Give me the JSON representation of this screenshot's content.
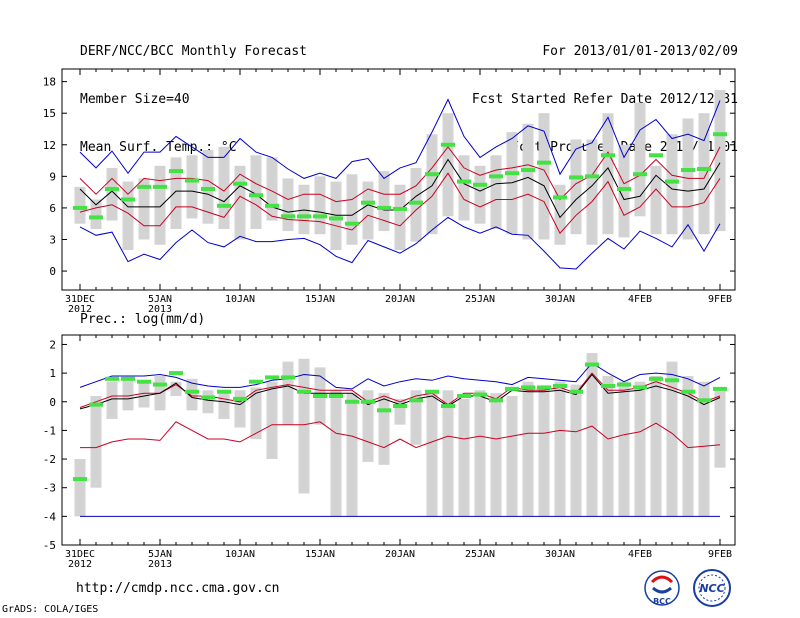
{
  "header": {
    "title": "DERF/NCC/BCC Monthly Forecast",
    "member_size": "Member Size=40",
    "variable": "Mean Surf. Temp.: °C",
    "period": "For 2013/01/01-2013/02/09",
    "start_date": "Fcst Started Refer Date 2012/12/31",
    "produced_date": "Fcst Produced Date 2013/01/01"
  },
  "footer": {
    "url": "http://cmdp.ncc.cma.gov.cn",
    "grads": "GrADS: COLA/IGES",
    "logo_left": "BCC",
    "logo_right": "NCC"
  },
  "colors": {
    "box": "#d3d3d3",
    "green": "#44e244",
    "blue": "#0000cc",
    "red": "#cc0022",
    "black": "#000000"
  },
  "chart_data": [
    {
      "type": "box",
      "name": "temperature",
      "title": "Mean Surf. Temp.: °C",
      "ylim": [
        -1.8,
        19.2
      ],
      "yticks": [
        0,
        3,
        6,
        9,
        12,
        15,
        18
      ],
      "xticks": [
        {
          "day": 0,
          "line1": "31DEC",
          "line2": "2012"
        },
        {
          "day": 5,
          "line1": "5JAN",
          "line2": "2013"
        },
        {
          "day": 10,
          "line1": "10JAN",
          "line2": ""
        },
        {
          "day": 15,
          "line1": "15JAN",
          "line2": ""
        },
        {
          "day": 20,
          "line1": "20JAN",
          "line2": ""
        },
        {
          "day": 25,
          "line1": "25JAN",
          "line2": ""
        },
        {
          "day": 30,
          "line1": "30JAN",
          "line2": ""
        },
        {
          "day": 35,
          "line1": "4FEB",
          "line2": ""
        },
        {
          "day": 40,
          "line1": "9FEB",
          "line2": ""
        }
      ],
      "box_low": [
        4.5,
        4,
        4.8,
        2,
        3,
        2.5,
        4,
        5,
        4.5,
        4,
        3,
        4,
        4.8,
        3.8,
        3.5,
        3.5,
        2,
        2.5,
        3,
        3.8,
        2,
        2.8,
        3.5,
        5.2,
        4.8,
        4.5,
        4,
        3.5,
        3,
        3,
        2.5,
        3.5,
        2.5,
        3.5,
        3.2,
        5.2,
        3.5,
        3.5,
        3,
        3.5,
        3.8
      ],
      "box_high": [
        8,
        6.8,
        9.8,
        8.5,
        8.8,
        10,
        10.8,
        11,
        11.5,
        11.8,
        10,
        11,
        10.8,
        8.8,
        8.2,
        9,
        8.5,
        9.2,
        8.5,
        9.5,
        8.2,
        9.8,
        13,
        15,
        11,
        10,
        11,
        13.2,
        14,
        15,
        8.2,
        12.5,
        12.5,
        15,
        12,
        16,
        10,
        13,
        14.5,
        15,
        17.2
      ],
      "median": [
        6,
        5.1,
        7.8,
        6.8,
        8,
        8,
        9.5,
        8.6,
        7.8,
        6.2,
        8.3,
        7.2,
        6.2,
        5.2,
        5.2,
        5.2,
        5,
        4.5,
        6.5,
        6,
        5.9,
        6.5,
        9.2,
        12,
        8.5,
        8.2,
        9,
        9.3,
        9.6,
        10.3,
        7,
        8.9,
        9,
        11,
        7.8,
        9.2,
        11,
        8.5,
        9.6,
        9.7,
        13
      ],
      "max": [
        11.3,
        9.8,
        11.4,
        9.3,
        11.3,
        11.3,
        12.8,
        11.8,
        10.8,
        10.8,
        12.6,
        11.3,
        10.8,
        9.7,
        8.8,
        9.3,
        8.8,
        10.4,
        10.7,
        8.8,
        9.8,
        10.3,
        13.2,
        16.3,
        12.8,
        10.8,
        11.8,
        12.6,
        13.8,
        13.3,
        9.2,
        11.6,
        12.2,
        14.6,
        10.8,
        13.4,
        14.4,
        12.6,
        13,
        12.4,
        16.2
      ],
      "p90": [
        8.8,
        7.3,
        8.8,
        7.3,
        8.8,
        8.6,
        8.8,
        8.8,
        8.6,
        7.6,
        9.2,
        8.3,
        7.6,
        6.8,
        7.3,
        7.3,
        6.6,
        6.8,
        7.8,
        7.3,
        7.3,
        8.1,
        9.8,
        11.8,
        9.8,
        9.1,
        9.6,
        9.8,
        10.1,
        9.6,
        6.8,
        8.3,
        9.1,
        11.3,
        8.3,
        9.1,
        10.6,
        9.1,
        8.8,
        8.8,
        11.8
      ],
      "mean": [
        7.8,
        6.3,
        7.6,
        6.1,
        6.1,
        6.1,
        7.6,
        7.6,
        7.3,
        6.6,
        8.1,
        7.3,
        6.1,
        5.6,
        5.8,
        5.6,
        5.3,
        5.3,
        6.3,
        5.8,
        5.8,
        7.1,
        8.1,
        10.6,
        8.3,
        7.6,
        8.3,
        8.4,
        8.9,
        8.1,
        5.1,
        6.8,
        8.1,
        9.8,
        6.8,
        7.1,
        9.1,
        7.8,
        7.6,
        7.8,
        10.3
      ],
      "p10": [
        5.6,
        6,
        6.3,
        5.5,
        4.3,
        4.3,
        6.1,
        6.1,
        5.6,
        5.1,
        7.1,
        6.3,
        5.2,
        4.9,
        4.8,
        4.7,
        4.3,
        3.9,
        5.3,
        4.8,
        4.3,
        5.8,
        7.1,
        9.3,
        6.8,
        6.1,
        6.8,
        6.8,
        7.3,
        6.6,
        3.6,
        5.3,
        6.6,
        8.5,
        5.3,
        6.1,
        7.8,
        6.1,
        6.1,
        6.5,
        8.8
      ],
      "min": [
        4.2,
        3.4,
        3.7,
        0.9,
        1.6,
        1.1,
        2.7,
        3.9,
        2.7,
        2.3,
        3.3,
        2.8,
        2.8,
        3,
        3.1,
        2.5,
        1.4,
        0.8,
        2.9,
        2.3,
        1.7,
        2.6,
        3.9,
        5.1,
        4.2,
        3.6,
        4.2,
        3.5,
        3.4,
        1.9,
        0.3,
        0.2,
        1.7,
        3.1,
        2.1,
        3.8,
        3.1,
        2.3,
        4.4,
        1.9,
        4.5
      ]
    },
    {
      "type": "box",
      "name": "precipitation",
      "title": "Prec.: log(mm/d)",
      "ylim": [
        -5,
        2.33
      ],
      "yticks": [
        -5,
        -4,
        -3,
        -2,
        -1,
        0,
        1,
        2
      ],
      "xticks": [
        {
          "day": 0,
          "line1": "31DEC",
          "line2": "2012"
        },
        {
          "day": 5,
          "line1": "5JAN",
          "line2": "2013"
        },
        {
          "day": 10,
          "line1": "10JAN",
          "line2": ""
        },
        {
          "day": 15,
          "line1": "15JAN",
          "line2": ""
        },
        {
          "day": 20,
          "line1": "20JAN",
          "line2": ""
        },
        {
          "day": 25,
          "line1": "25JAN",
          "line2": ""
        },
        {
          "day": 30,
          "line1": "30JAN",
          "line2": ""
        },
        {
          "day": 35,
          "line1": "4FEB",
          "line2": ""
        },
        {
          "day": 40,
          "line1": "9FEB",
          "line2": ""
        }
      ],
      "box_low": [
        -4,
        -3,
        -0.6,
        -0.3,
        -0.2,
        -0.3,
        0.2,
        -0.3,
        -0.4,
        -0.6,
        -0.9,
        -1.3,
        -2,
        -0.8,
        -3.2,
        -0.8,
        -4,
        -4,
        -2.1,
        -2.2,
        -0.8,
        -1.5,
        -4,
        -4,
        -4,
        -4,
        -4,
        -4,
        -4,
        -4,
        -4,
        -4,
        -4,
        -4,
        -4,
        -4,
        -4,
        -4,
        -4,
        -4,
        -2.3
      ],
      "box_high": [
        -2,
        0.2,
        0.7,
        0.8,
        0.7,
        0.9,
        0.7,
        0.8,
        0.4,
        0.4,
        0.4,
        0.5,
        0.7,
        1.4,
        1.5,
        1.2,
        0.4,
        0.3,
        0.4,
        0.3,
        0.1,
        0.4,
        0.4,
        0.4,
        0.1,
        0.4,
        0.3,
        0.2,
        0.7,
        0.5,
        0.7,
        0.6,
        1.7,
        0.9,
        0.7,
        0.7,
        0.9,
        1.4,
        0.9,
        0.7,
        0.5
      ],
      "median": [
        -2.7,
        -0.1,
        0.8,
        0.8,
        0.7,
        0.6,
        1,
        0.35,
        0.15,
        0.35,
        0.1,
        0.7,
        0.85,
        0.85,
        0.35,
        0.2,
        0.2,
        0,
        0,
        -0.3,
        -0.15,
        0.05,
        0.35,
        -0.15,
        0.2,
        0.25,
        0.05,
        0.45,
        0.5,
        0.5,
        0.55,
        0.35,
        1.3,
        0.55,
        0.6,
        0.5,
        0.8,
        0.75,
        0.35,
        0.05,
        0.45
      ],
      "max": [
        0.5,
        0.7,
        0.9,
        0.9,
        0.9,
        0.95,
        0.85,
        0.65,
        0.55,
        0.5,
        0.5,
        0.6,
        0.75,
        0.8,
        0.95,
        0.9,
        0.5,
        0.45,
        0.8,
        0.55,
        0.7,
        0.8,
        0.75,
        0.9,
        0.8,
        0.75,
        0.7,
        0.6,
        0.85,
        0.8,
        0.75,
        0.7,
        1.35,
        1,
        0.7,
        0.95,
        1,
        0.95,
        0.8,
        0.55,
        0.85
      ],
      "p90": [
        -0.2,
        0,
        0.2,
        0.2,
        0.3,
        0.3,
        0.6,
        0.2,
        0.2,
        0.1,
        0,
        0.4,
        0.5,
        0.6,
        0.5,
        0.4,
        0.4,
        0.4,
        0,
        0.2,
        0,
        0.2,
        0.3,
        -0.1,
        0.3,
        0.3,
        0.1,
        0.5,
        0.4,
        0.4,
        0.5,
        0.3,
        1,
        0.4,
        0.4,
        0.5,
        0.7,
        0.5,
        0.3,
        0,
        0.2
      ],
      "mean": [
        -0.25,
        -0.1,
        0.1,
        0.1,
        0.2,
        0.3,
        0.65,
        0.15,
        0.05,
        0,
        -0.1,
        0.3,
        0.45,
        0.55,
        0.3,
        0.3,
        0.3,
        0.3,
        -0.1,
        0.1,
        -0.1,
        0.1,
        0.2,
        -0.15,
        0.2,
        0.2,
        0,
        0.4,
        0.35,
        0.35,
        0.4,
        0.25,
        0.95,
        0.3,
        0.35,
        0.4,
        0.55,
        0.4,
        0.2,
        -0.1,
        0.15
      ],
      "p10": [
        -1.6,
        -1.6,
        -1.4,
        -1.3,
        -1.3,
        -1.35,
        -0.7,
        -1,
        -1.3,
        -1.3,
        -1.4,
        -1.1,
        -0.8,
        -0.8,
        -0.8,
        -0.7,
        -1.1,
        -1.2,
        -1.4,
        -1.6,
        -1.3,
        -1.6,
        -1.4,
        -1.2,
        -1.3,
        -1.2,
        -1.3,
        -1.2,
        -1.1,
        -1.1,
        -1,
        -1.05,
        -0.85,
        -1.3,
        -1.15,
        -1.05,
        -0.75,
        -1.1,
        -1.6,
        -1.55,
        -1.5
      ],
      "min": [
        -4,
        -4,
        -4,
        -4,
        -4,
        -4,
        -4,
        -4,
        -4,
        -4,
        -4,
        -4,
        -4,
        -4,
        -4,
        -4,
        -4,
        -4,
        -4,
        -4,
        -4,
        -4,
        -4,
        -4,
        -4,
        -4,
        -4,
        -4,
        -4,
        -4,
        -4,
        -4,
        -4,
        -4,
        -4,
        -4,
        -4,
        -4,
        -4,
        -4,
        -4
      ]
    }
  ]
}
